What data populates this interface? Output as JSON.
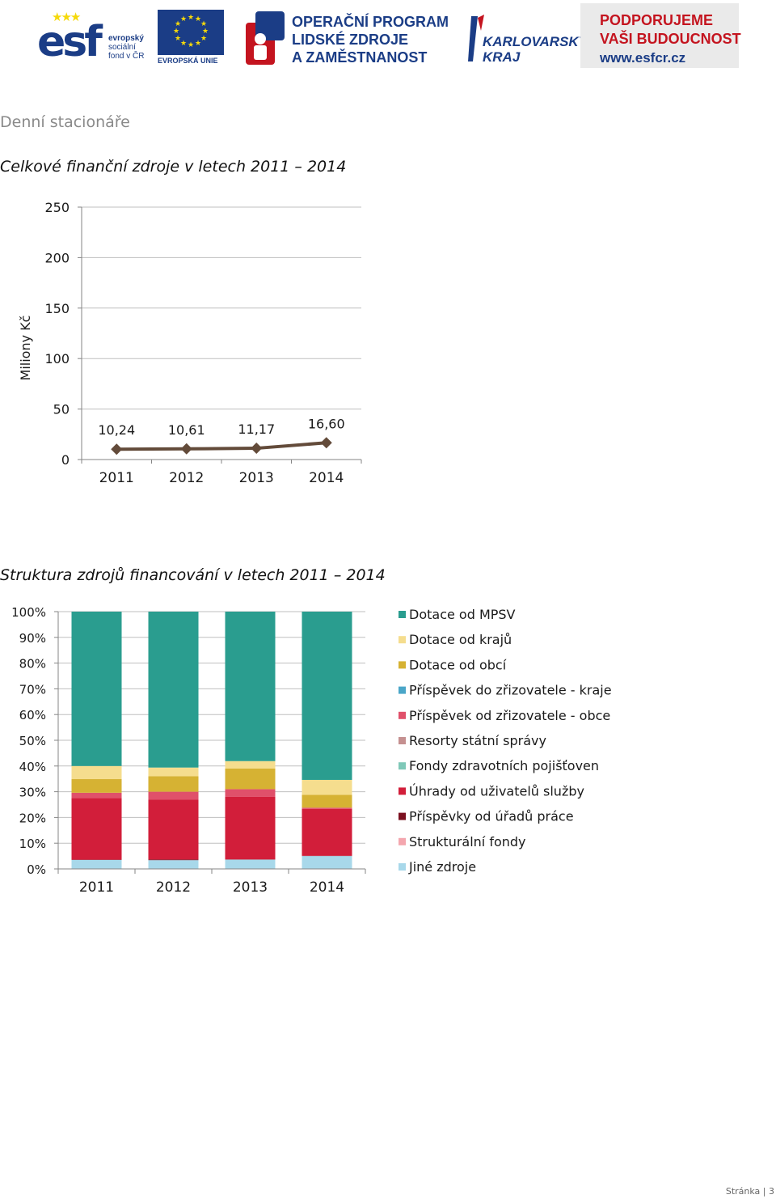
{
  "header": {
    "esf": {
      "letters": "esf",
      "caption_line1": "evropský",
      "caption_line2": "sociální",
      "caption_line3": "fond v ČR",
      "eu_caption": "EVROPSKÁ UNIE"
    },
    "op": {
      "line1": "OPERAČNÍ PROGRAM",
      "line2": "LIDSKÉ ZDROJE",
      "line3": "A ZAMĚSTNANOST"
    },
    "kraj": {
      "line1": "KARLOVARSKÝ",
      "line2": "KRAJ"
    },
    "slogan": {
      "line1": "PODPORUJEME",
      "line2": "VAŠI BUDOUCNOST",
      "url": "www.esfcr.cz"
    }
  },
  "section_heading": "Denní stacionáře",
  "chart1_title": "Celkové finanční zdroje v letech 2011 – 2014",
  "chart2_title": "Struktura zdrojů financování v letech 2011 – 2014",
  "footer": "Stránka | 3",
  "colors": {
    "line": "#634b3a",
    "grid": "#bfbfbf",
    "axis": "#868686"
  },
  "chart_data": [
    {
      "type": "line",
      "title": "",
      "ylabel": "Miliony Kč",
      "xlabel": "",
      "categories": [
        "2011",
        "2012",
        "2013",
        "2014"
      ],
      "values": [
        10.24,
        10.61,
        11.17,
        16.6
      ],
      "data_labels": [
        "10,24",
        "10,61",
        "11,17",
        "16,60"
      ],
      "ylim": [
        0,
        250
      ],
      "yticks": [
        "0",
        "50",
        "100",
        "150",
        "200",
        "250"
      ],
      "grid": true,
      "legend": "none",
      "marker": "diamond",
      "color": "#634b3a"
    },
    {
      "type": "bar",
      "stacked": true,
      "percent": true,
      "title": "",
      "categories": [
        "2011",
        "2012",
        "2013",
        "2014"
      ],
      "ylim": [
        0,
        100
      ],
      "yticks": [
        "0%",
        "10%",
        "20%",
        "30%",
        "40%",
        "50%",
        "60%",
        "70%",
        "80%",
        "90%",
        "100%"
      ],
      "grid": true,
      "legend": "right",
      "series": [
        {
          "name": "Jiné zdroje",
          "color": "#a8d8ea",
          "values": [
            3.5,
            3.4,
            3.6,
            5.0
          ]
        },
        {
          "name": "Strukturální fondy",
          "color": "#f4a6ae",
          "values": [
            0,
            0,
            0,
            0
          ]
        },
        {
          "name": "Příspěvky od úřadů práce",
          "color": "#7b1020",
          "values": [
            0.1,
            0.3,
            0.1,
            0.1
          ]
        },
        {
          "name": "Úhrady od uživatelů služby",
          "color": "#d21e3a",
          "values": [
            24.0,
            23.3,
            24.3,
            18.2
          ]
        },
        {
          "name": "Fondy zdravotních pojišťoven",
          "color": "#7fc8b8",
          "values": [
            0,
            0,
            0,
            0
          ]
        },
        {
          "name": "Resorty státní správy",
          "color": "#c59090",
          "values": [
            0,
            0,
            0,
            0
          ]
        },
        {
          "name": "Příspěvek od zřizovatele - obce",
          "color": "#e0506a",
          "values": [
            2.0,
            3.0,
            3.0,
            0.5
          ]
        },
        {
          "name": "Příspěvek do zřizovatele - kraje",
          "color": "#4aa6c8",
          "values": [
            0,
            0,
            0,
            0
          ]
        },
        {
          "name": "Dotace od obcí",
          "color": "#d6b233",
          "values": [
            5.3,
            6.0,
            8.0,
            5.0
          ]
        },
        {
          "name": "Dotace od krajů",
          "color": "#f5dd8e",
          "values": [
            5.1,
            3.4,
            2.9,
            5.8
          ]
        },
        {
          "name": "Dotace od MPSV",
          "color": "#2a9d8f",
          "values": [
            60.0,
            60.6,
            58.1,
            65.4
          ]
        }
      ],
      "legend_order": [
        "Dotace od MPSV",
        "Dotace od krajů",
        "Dotace od obcí",
        "Příspěvek do zřizovatele - kraje",
        "Příspěvek od zřizovatele - obce",
        "Resorty státní správy",
        "Fondy zdravotních pojišťoven",
        "Úhrady od uživatelů služby",
        "Příspěvky od úřadů práce",
        "Strukturální fondy",
        "Jiné zdroje"
      ]
    }
  ]
}
